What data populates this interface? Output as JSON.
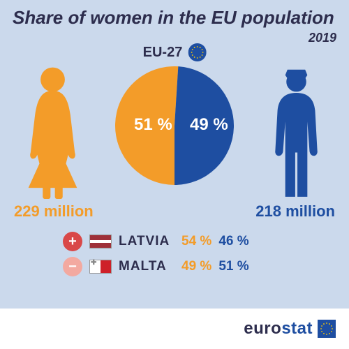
{
  "title": "Share of women in the EU population",
  "year": "2019",
  "region_label": "EU-27",
  "colors": {
    "background": "#cbd9ec",
    "text": "#2d2d4d",
    "female": "#f39c29",
    "male": "#1e4ea1",
    "footer_bg": "#ffffff",
    "eu_flag_bg": "#1e4ea1",
    "eu_star": "#ffcc00",
    "sign_plus_bg": "#d94848",
    "sign_minus_bg": "#f3a9a0"
  },
  "typography": {
    "title_fontsize": 26,
    "year_fontsize": 18,
    "region_fontsize": 20,
    "pct_fontsize": 24,
    "count_fontsize": 22,
    "country_fontsize": 19,
    "logo_fontsize": 24
  },
  "pie": {
    "type": "pie",
    "slices": [
      {
        "label": "female",
        "value": 51,
        "color": "#f39c29"
      },
      {
        "label": "male",
        "value": 49,
        "color": "#1e4ea1"
      }
    ],
    "female_pct_label": "51 %",
    "male_pct_label": "49 %"
  },
  "counts": {
    "female": "229 million",
    "male": "218 million"
  },
  "countries": [
    {
      "sign": "+",
      "sign_bg": "#d94848",
      "name": "LATVIA",
      "flag_top": "#9e3039",
      "flag_mid": "#ffffff",
      "flag_bot": "#9e3039",
      "female_pct": "54 %",
      "male_pct": "46 %"
    },
    {
      "sign": "−",
      "sign_bg": "#f3a9a0",
      "name": "MALTA",
      "flag_top": "#ffffff",
      "flag_mid": "#ffffff",
      "flag_bot": "#ce2029",
      "female_pct": "49 %",
      "male_pct": "51 %"
    }
  ],
  "footer": {
    "brand_prefix": "euro",
    "brand_suffix": "stat"
  }
}
